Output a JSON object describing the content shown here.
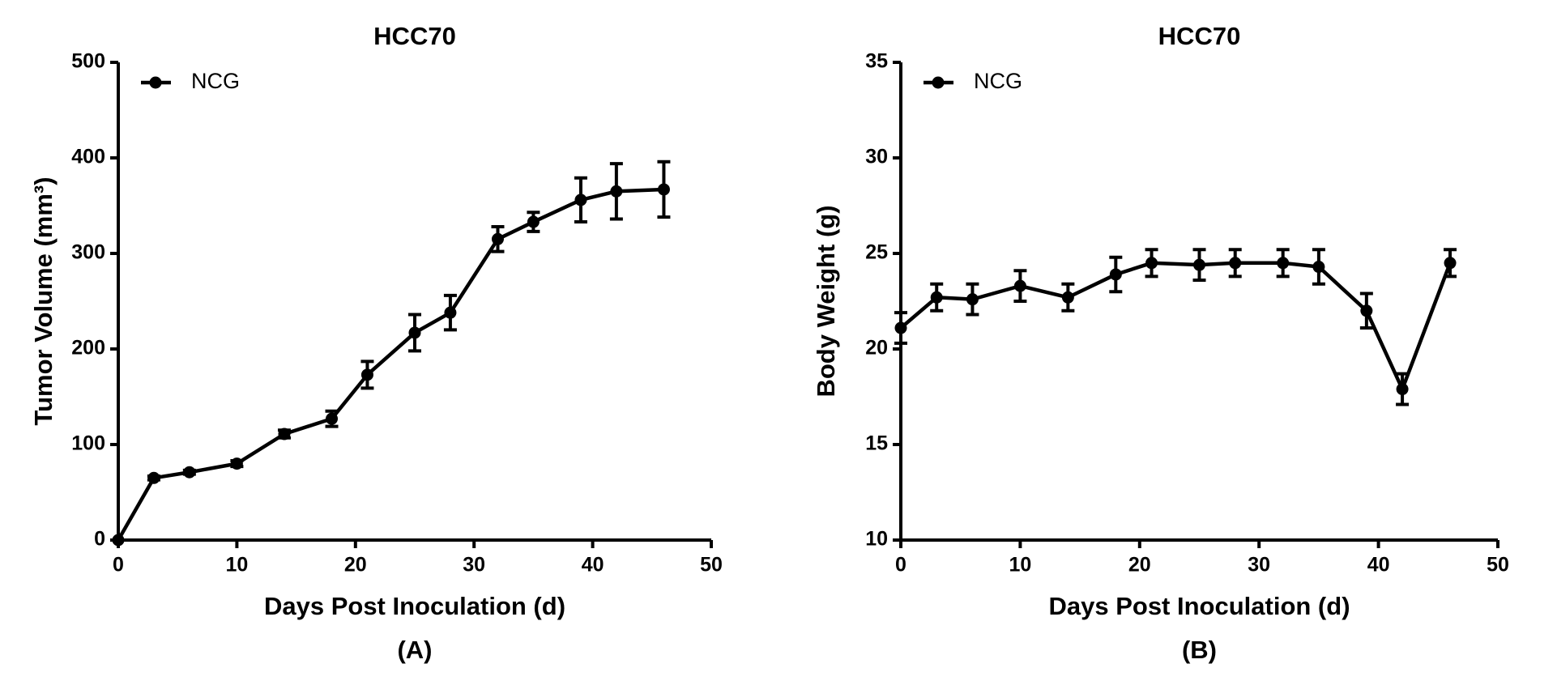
{
  "chart_data": [
    {
      "type": "line",
      "title": "HCC70",
      "caption": "(A)",
      "x_label": "Days Post Inoculation (d)",
      "y_label": "Tumor Volume (mm³)",
      "xlim": [
        0,
        50
      ],
      "xticks": [
        0,
        10,
        20,
        30,
        40,
        50
      ],
      "ylim": [
        0,
        500
      ],
      "yticks": [
        0,
        100,
        200,
        300,
        400,
        500
      ],
      "legend": "upper-left",
      "x": [
        0,
        3,
        6,
        10,
        14,
        18,
        21,
        25,
        28,
        32,
        35,
        39,
        42,
        46
      ],
      "series": [
        {
          "name": "NCG",
          "color": "#000000",
          "values": [
            0,
            65,
            71,
            80,
            111,
            127,
            173,
            217,
            238,
            315,
            333,
            356,
            365,
            367
          ],
          "errors": [
            0,
            2,
            2,
            3,
            4,
            8,
            14,
            19,
            18,
            13,
            10,
            23,
            29,
            29
          ]
        }
      ]
    },
    {
      "type": "line",
      "title": "HCC70",
      "caption": "(B)",
      "x_label": "Days Post Inoculation (d)",
      "y_label": "Body Weight (g)",
      "xlim": [
        0,
        50
      ],
      "xticks": [
        0,
        10,
        20,
        30,
        40,
        50
      ],
      "ylim": [
        10,
        35
      ],
      "yticks": [
        10,
        15,
        20,
        25,
        30,
        35
      ],
      "legend": "upper-left",
      "x": [
        0,
        3,
        6,
        10,
        14,
        18,
        21,
        25,
        28,
        32,
        35,
        39,
        42,
        46
      ],
      "series": [
        {
          "name": "NCG",
          "color": "#000000",
          "values": [
            21.1,
            22.7,
            22.6,
            23.3,
            22.7,
            23.9,
            24.5,
            24.4,
            24.5,
            24.5,
            24.3,
            22.0,
            17.9,
            24.5
          ],
          "errors": [
            0.8,
            0.7,
            0.8,
            0.8,
            0.7,
            0.9,
            0.7,
            0.8,
            0.7,
            0.7,
            0.9,
            0.9,
            0.8,
            0.7
          ]
        }
      ]
    }
  ]
}
